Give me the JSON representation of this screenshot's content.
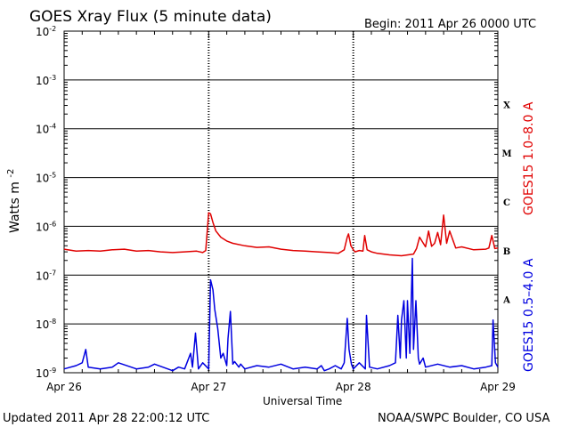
{
  "header": {
    "title": "GOES Xray Flux (5 minute data)",
    "begin": "Begin:  2011 Apr 26 0000 UTC"
  },
  "footer": {
    "updated": "Updated 2011 Apr 28 22:00:12 UTC",
    "credit": "NOAA/SWPC Boulder, CO USA"
  },
  "chart_data": {
    "type": "line",
    "title": "GOES Xray Flux (5 minute data)",
    "xlabel": "Universal Time",
    "ylabel": "Watts m",
    "ylabel_sup": "-2",
    "yscale": "log",
    "ylim": [
      1e-09,
      0.01
    ],
    "xlim": [
      "2011-04-26 00:00",
      "2011-04-29 00:00"
    ],
    "xticks": [
      "Apr 26",
      "Apr 27",
      "Apr 28",
      "Apr 29"
    ],
    "yticks": [
      {
        "base": "10",
        "exp": "-2"
      },
      {
        "base": "10",
        "exp": "-3"
      },
      {
        "base": "10",
        "exp": "-4"
      },
      {
        "base": "10",
        "exp": "-5"
      },
      {
        "base": "10",
        "exp": "-6"
      },
      {
        "base": "10",
        "exp": "-7"
      },
      {
        "base": "10",
        "exp": "-8"
      },
      {
        "base": "10",
        "exp": "-9"
      }
    ],
    "flare_classes": [
      "X",
      "M",
      "C",
      "B",
      "A"
    ],
    "grid": true,
    "series": [
      {
        "name": "GOES15 1.0–8.0 A",
        "color": "#e00000",
        "x_hours": [
          0,
          2,
          4,
          6,
          8,
          10,
          12,
          14,
          16,
          18,
          20,
          22,
          23,
          23.5,
          24,
          24.3,
          24.7,
          25.2,
          26,
          27,
          28,
          30,
          32,
          34,
          36,
          38,
          40,
          42,
          44,
          45.5,
          46.5,
          47,
          47.2,
          47.6,
          48,
          48.3,
          49,
          49.6,
          49.9,
          50.3,
          51,
          52,
          54,
          56,
          58,
          58.5,
          59,
          60,
          60.5,
          61,
          61.5,
          62,
          62.5,
          63,
          63.5,
          64,
          65,
          66,
          68,
          70,
          70.5,
          71,
          71.5,
          72
        ],
        "values": [
          3.4e-07,
          3.1e-07,
          3.2e-07,
          3.1e-07,
          3.3e-07,
          3.4e-07,
          3.1e-07,
          3.2e-07,
          3e-07,
          2.9e-07,
          3e-07,
          3.1e-07,
          2.9e-07,
          3.2e-07,
          1.9e-06,
          1.8e-06,
          1.2e-06,
          8e-07,
          6e-07,
          5e-07,
          4.5e-07,
          4e-07,
          3.7e-07,
          3.8e-07,
          3.4e-07,
          3.2e-07,
          3.1e-07,
          3e-07,
          2.9e-07,
          2.8e-07,
          3.3e-07,
          6e-07,
          7e-07,
          4e-07,
          3.3e-07,
          3e-07,
          3.2e-07,
          3.1e-07,
          6.5e-07,
          3.3e-07,
          3e-07,
          2.8e-07,
          2.6e-07,
          2.5e-07,
          2.7e-07,
          3.5e-07,
          6e-07,
          3.8e-07,
          8e-07,
          3.9e-07,
          4.5e-07,
          7.5e-07,
          4.2e-07,
          1.7e-06,
          4.5e-07,
          8e-07,
          3.6e-07,
          3.8e-07,
          3.3e-07,
          3.4e-07,
          3.6e-07,
          6.5e-07,
          3.5e-07,
          3.6e-07
        ]
      },
      {
        "name": "GOES15 0.5–4.0 A",
        "color": "#0000e0",
        "x_hours": [
          0,
          2,
          3,
          3.6,
          4,
          6,
          8,
          9,
          12,
          14,
          15,
          18,
          19,
          20,
          21,
          21.3,
          21.8,
          22.3,
          23,
          24,
          24.3,
          24.7,
          25,
          25.5,
          26,
          26.4,
          27,
          27.2,
          27.6,
          28,
          28.3,
          29,
          29.3,
          30,
          32,
          34,
          36,
          38,
          40,
          42,
          42.7,
          43.2,
          44,
          45,
          46,
          46.5,
          47,
          47.3,
          47.7,
          48,
          49,
          50,
          50.2,
          50.7,
          52,
          54,
          55,
          55.4,
          55.8,
          56,
          56.4,
          56.8,
          57,
          57.4,
          57.8,
          58,
          58.4,
          58.8,
          59,
          59.6,
          60,
          62,
          64,
          66,
          68,
          70,
          71,
          71.2,
          71.6,
          72
        ],
        "values": [
          1.2e-09,
          1.4e-09,
          1.6e-09,
          3e-09,
          1.3e-09,
          1.2e-09,
          1.3e-09,
          1.6e-09,
          1.2e-09,
          1.3e-09,
          1.5e-09,
          1.1e-09,
          1.3e-09,
          1.2e-09,
          2.5e-09,
          1.3e-09,
          6.5e-09,
          1.2e-09,
          1.6e-09,
          1.2e-09,
          8e-08,
          5e-08,
          2e-08,
          8e-09,
          2e-09,
          2.5e-09,
          1.4e-09,
          5e-09,
          1.8e-08,
          1.5e-09,
          1.7e-09,
          1.3e-09,
          1.5e-09,
          1.2e-09,
          1.4e-09,
          1.3e-09,
          1.5e-09,
          1.2e-09,
          1.3e-09,
          1.2e-09,
          1.4e-09,
          1.1e-09,
          1.2e-09,
          1.4e-09,
          1.2e-09,
          1.6e-09,
          1.3e-08,
          3e-09,
          1.5e-09,
          1.2e-09,
          1.6e-09,
          1.2e-09,
          1.5e-08,
          1.3e-09,
          1.2e-09,
          1.4e-09,
          1.6e-09,
          1.5e-08,
          2e-09,
          1.2e-08,
          3e-08,
          2e-09,
          3e-08,
          2.5e-09,
          2.2e-07,
          3e-09,
          3e-08,
          2e-09,
          1.5e-09,
          2e-09,
          1.3e-09,
          1.5e-09,
          1.3e-09,
          1.4e-09,
          1.2e-09,
          1.3e-09,
          1.4e-09,
          1.2e-08,
          1.6e-09,
          1.3e-09
        ]
      }
    ]
  }
}
